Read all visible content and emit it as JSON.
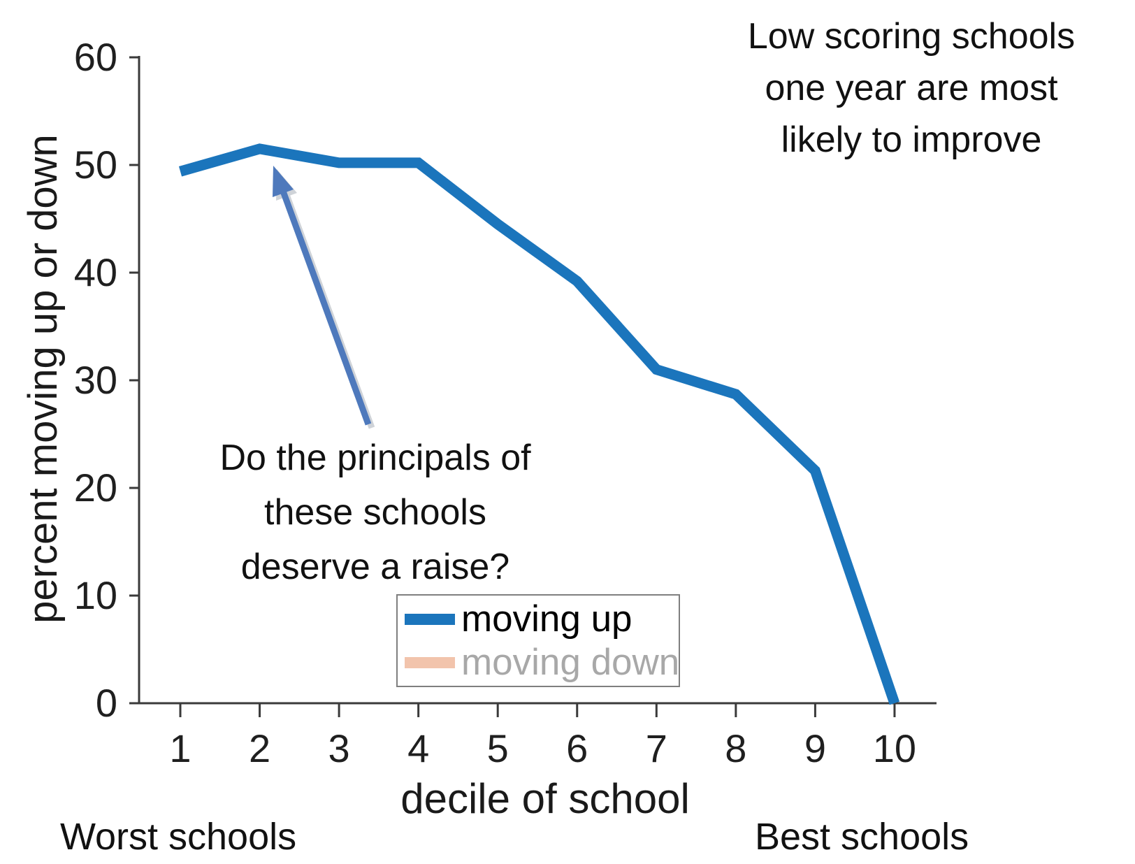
{
  "chart_data": {
    "type": "line",
    "x_label": "decile of school",
    "y_label": "percent moving up or down",
    "x_ticks": [
      1,
      2,
      3,
      4,
      5,
      6,
      7,
      8,
      9,
      10
    ],
    "y_ticks": [
      0,
      10,
      20,
      30,
      40,
      50,
      60
    ],
    "x_range": [
      1,
      10
    ],
    "y_range": [
      0,
      60
    ],
    "grid": "off",
    "legend_position": "inside-bottom-center",
    "series": [
      {
        "name": "moving up",
        "color": "#1b75bc",
        "x": [
          1,
          2,
          3,
          4,
          5,
          6,
          7,
          8,
          9,
          10
        ],
        "values": [
          49.4,
          51.5,
          50.2,
          50.2,
          44.5,
          39.2,
          31.0,
          28.7,
          21.6,
          0
        ]
      },
      {
        "name": "moving down",
        "color": "#f2c4ac",
        "x": [],
        "values": []
      }
    ]
  },
  "annotations": {
    "improve": "Low scoring schools\none year are most\nlikely to improve",
    "raise_question": "Do the principals of\nthese schools\ndeserve a raise?",
    "arrow_color": "#4e79bc",
    "arrow_shadow_color": "#a9b0ba"
  },
  "corner_labels": {
    "left": "Worst schools",
    "right": "Best schools"
  },
  "legend": {
    "muted_text_color": "#a8a8a8",
    "normal_text_color": "#000000"
  },
  "axis": {
    "color": "#3a3a3a"
  }
}
